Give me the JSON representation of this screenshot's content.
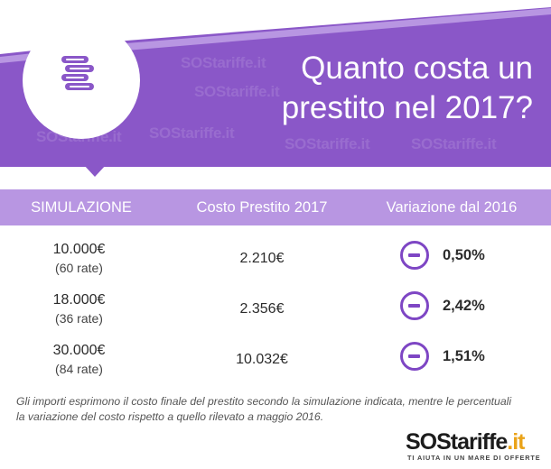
{
  "header": {
    "title_line1": "Quanto costa un",
    "title_line2": "prestito nel 2017?",
    "watermark": "SOStariffe.it",
    "icon": "coins-stack-icon",
    "bg_color": "#8a57c8"
  },
  "table": {
    "headers": [
      "SIMULAZIONE",
      "Costo Prestito 2017",
      "Variazione dal 2016"
    ],
    "header_bg": "#b896e2",
    "rows": [
      {
        "amount": "10.000€",
        "rate": "(60 rate)",
        "cost": "2.210€",
        "variation": "0,50%",
        "trend_icon": "minus-circle-icon"
      },
      {
        "amount": "18.000€",
        "rate": "(36 rate)",
        "cost": "2.356€",
        "variation": "2,42%",
        "trend_icon": "minus-circle-icon"
      },
      {
        "amount": "30.000€",
        "rate": "(84 rate)",
        "cost": "10.032€",
        "variation": "1,51%",
        "trend_icon": "minus-circle-icon"
      }
    ],
    "accent_color": "#7e46c4"
  },
  "footer": {
    "note_line1": "Gli importi esprimono il costo finale del prestito secondo la simulazione indicata, mentre le percentuali",
    "note_line2": "la variazione del costo rispetto a quello rilevato a maggio 2016.",
    "logo_sos": "SOS",
    "logo_tariffe": "tariffe",
    "logo_it": ".it",
    "logo_tagline": "TI AIUTA IN UN MARE DI OFFERTE",
    "logo_accent": "#eaa319"
  }
}
